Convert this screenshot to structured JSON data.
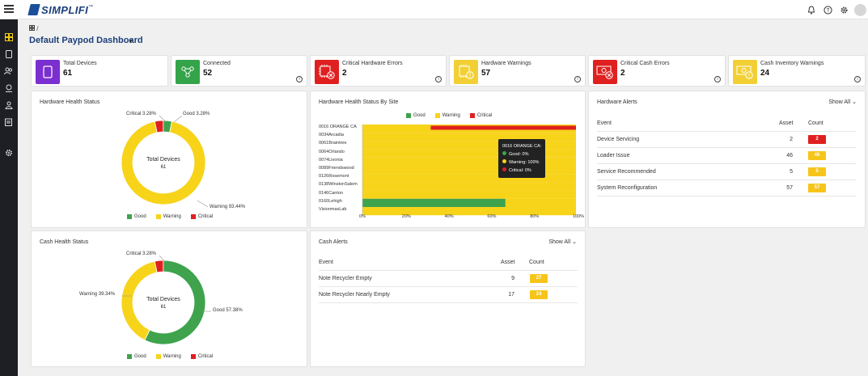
{
  "app": {
    "logo": "SIMPLIFI",
    "logo_tm": "™"
  },
  "header": {
    "breadcrumb_sep": "/",
    "title": "Default Paypod Dashboard"
  },
  "stats": [
    {
      "label": "Total Devices",
      "value": "61",
      "color": "#7b2fd0"
    },
    {
      "label": "Connected",
      "value": "52",
      "color": "#34a34a"
    },
    {
      "label": "Critical Hardware Errors",
      "value": "2",
      "color": "#e02020"
    },
    {
      "label": "Hardware Warnings",
      "value": "57",
      "color": "#f2d035"
    },
    {
      "label": "Critical Cash Errors",
      "value": "2",
      "color": "#e02020"
    },
    {
      "label": "Cash Inventory Warnings",
      "value": "24",
      "color": "#f2d035"
    }
  ],
  "hardware_health": {
    "title": "Hardware Health Status",
    "center_title": "Total Devices",
    "center_value": "61",
    "critical_label": "Critical 3.28%",
    "good_label": "Good 3.28%",
    "warning_label": "Warning 93.44%"
  },
  "cash_health": {
    "title": "Cash Health Status",
    "center_title": "Total Devices",
    "center_value": "61",
    "critical_label": "Critical 3.28%",
    "warning_label": "Warning 39.34%",
    "good_label": "Good 57.38%"
  },
  "legend": {
    "good": "Good",
    "warning": "Warning",
    "critical": "Critical"
  },
  "colors": {
    "good": "#3fa34d",
    "warning": "#f7d31a",
    "critical": "#e02020"
  },
  "site_chart": {
    "title": "Hardware Health Status By Site",
    "sites": [
      "0016 ORANGE CA",
      "0034Arcadia",
      "0061Braintree",
      "0064Orlando",
      "0074Livonia",
      "0089Friendswood",
      "0126Rosemont",
      "0138WinstonSalem",
      "0146Canton",
      "0160Lehigh",
      "VisionmaxLab"
    ],
    "xticks": [
      "0%",
      "20%",
      "40%",
      "60%",
      "80%",
      "100%"
    ],
    "tooltip": {
      "title": "0016 ORANGE CA:",
      "good": "Good: 0%",
      "warning": "Warning: 100%",
      "critical": "Critical: 0%"
    }
  },
  "chart_data": [
    {
      "type": "pie",
      "title": "Hardware Health Status",
      "categories": [
        "Good",
        "Warning",
        "Critical"
      ],
      "values": [
        3.28,
        93.44,
        3.28
      ]
    },
    {
      "type": "bar",
      "title": "Hardware Health Status By Site",
      "categories": [
        "0016 ORANGE CA",
        "0034Arcadia",
        "0061Braintree",
        "0064Orlando",
        "0074Livonia",
        "0089Friendswood",
        "0126Rosemont",
        "0138WinstonSalem",
        "0146Canton",
        "0160Lehigh",
        "VisionmaxLab"
      ],
      "series": [
        {
          "name": "Good",
          "values": [
            0,
            0,
            0,
            0,
            0,
            0,
            0,
            0,
            0,
            67,
            0
          ]
        },
        {
          "name": "Warning",
          "values": [
            100,
            100,
            100,
            100,
            100,
            100,
            100,
            100,
            100,
            33,
            100
          ]
        },
        {
          "name": "Critical",
          "values": [
            0,
            0,
            0,
            0,
            0,
            0,
            0,
            0,
            0,
            0,
            0
          ]
        }
      ],
      "xlim": [
        0,
        100
      ]
    },
    {
      "type": "pie",
      "title": "Cash Health Status",
      "categories": [
        "Good",
        "Warning",
        "Critical"
      ],
      "values": [
        57.38,
        39.34,
        3.28
      ]
    }
  ],
  "hardware_alerts": {
    "title": "Hardware Alerts",
    "show_all": "Show All",
    "headers": [
      "Event",
      "Asset",
      "Count"
    ],
    "rows": [
      {
        "event": "Device Servicing",
        "asset": "2",
        "count": "2",
        "color": "#e02020"
      },
      {
        "event": "Loader Issue",
        "asset": "46",
        "count": "46",
        "color": "#f7c51a"
      },
      {
        "event": "Service Recommended",
        "asset": "5",
        "count": "5",
        "color": "#f7c51a"
      },
      {
        "event": "System Reconfiguration",
        "asset": "57",
        "count": "57",
        "color": "#f7c51a"
      }
    ]
  },
  "cash_alerts": {
    "title": "Cash Alerts",
    "show_all": "Show All",
    "headers": [
      "Event",
      "Asset",
      "Count"
    ],
    "rows": [
      {
        "event": "Note Recycler Empty",
        "asset": "9",
        "count": "27",
        "color": "#f7c51a"
      },
      {
        "event": "Note Recycler Nearly Empty",
        "asset": "17",
        "count": "24",
        "color": "#f7c51a"
      }
    ]
  }
}
